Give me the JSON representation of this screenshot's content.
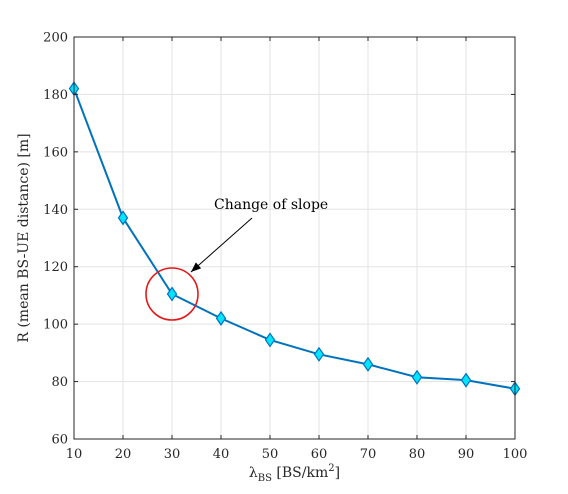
{
  "chart_data": {
    "type": "line",
    "x": [
      10,
      20,
      30,
      40,
      50,
      60,
      70,
      80,
      90,
      100
    ],
    "series": [
      {
        "values": [
          182,
          137,
          110.5,
          102,
          94.5,
          89.5,
          86,
          81.5,
          80.5,
          77.5
        ]
      }
    ],
    "xlabel_symbol": "λ",
    "xlabel_sub": "BS",
    "xlabel_rest": " [BS/km",
    "xlabel_sup": "2",
    "xlabel_end": "]",
    "ylabel": "R (mean BS-UE distance) [m]",
    "xlim": [
      10,
      100
    ],
    "ylim": [
      60,
      200
    ],
    "xticks": [
      10,
      20,
      30,
      40,
      50,
      60,
      70,
      80,
      90,
      100
    ],
    "yticks": [
      60,
      80,
      100,
      120,
      140,
      160,
      180,
      200
    ],
    "grid": true,
    "annotation": {
      "text": "Change of slope",
      "x": 30,
      "y": 110.5
    },
    "colors": {
      "line": "#0072bd",
      "marker_fill": "#00e5ff",
      "marker_edge": "#0072bd",
      "circle": "#e31a1c",
      "arrow": "#000000"
    }
  }
}
